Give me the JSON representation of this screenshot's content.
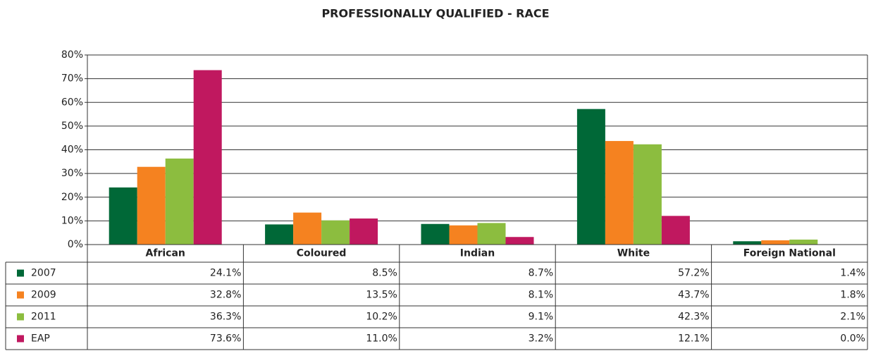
{
  "chart_data": {
    "type": "bar",
    "title": "PROFESSIONALLY QUALIFIED - RACE",
    "categories": [
      "African",
      "Coloured",
      "Indian",
      "White",
      "Foreign National"
    ],
    "series": [
      {
        "name": "2007",
        "color": "#006837",
        "values": [
          24.1,
          8.5,
          8.7,
          57.2,
          1.4
        ],
        "value_labels": [
          "24.1%",
          "8.5%",
          "8.7%",
          "57.2%",
          "1.4%"
        ]
      },
      {
        "name": "2009",
        "color": "#f58220",
        "values": [
          32.8,
          13.5,
          8.1,
          43.7,
          1.8
        ],
        "value_labels": [
          "32.8%",
          "13.5%",
          "8.1%",
          "43.7%",
          "1.8%"
        ]
      },
      {
        "name": "2011",
        "color": "#8cbd3f",
        "values": [
          36.3,
          10.2,
          9.1,
          42.3,
          2.1
        ],
        "value_labels": [
          "36.3%",
          "10.2%",
          "9.1%",
          "42.3%",
          "2.1%"
        ]
      },
      {
        "name": "EAP",
        "color": "#c0185f",
        "values": [
          73.6,
          11.0,
          3.2,
          12.1,
          0.0
        ],
        "value_labels": [
          "73.6%",
          "11.0%",
          "3.2%",
          "12.1%",
          "0.0%"
        ]
      }
    ],
    "ylim": [
      0,
      80
    ],
    "yticks": [
      {
        "value": 0,
        "label": "0%"
      },
      {
        "value": 10,
        "label": "10%"
      },
      {
        "value": 20,
        "label": "20%"
      },
      {
        "value": 30,
        "label": "30%"
      },
      {
        "value": 40,
        "label": "40%"
      },
      {
        "value": 50,
        "label": "50%"
      },
      {
        "value": 60,
        "label": "60%"
      },
      {
        "value": 70,
        "label": "70%"
      },
      {
        "value": 80,
        "label": "80%"
      }
    ],
    "grid": true
  }
}
